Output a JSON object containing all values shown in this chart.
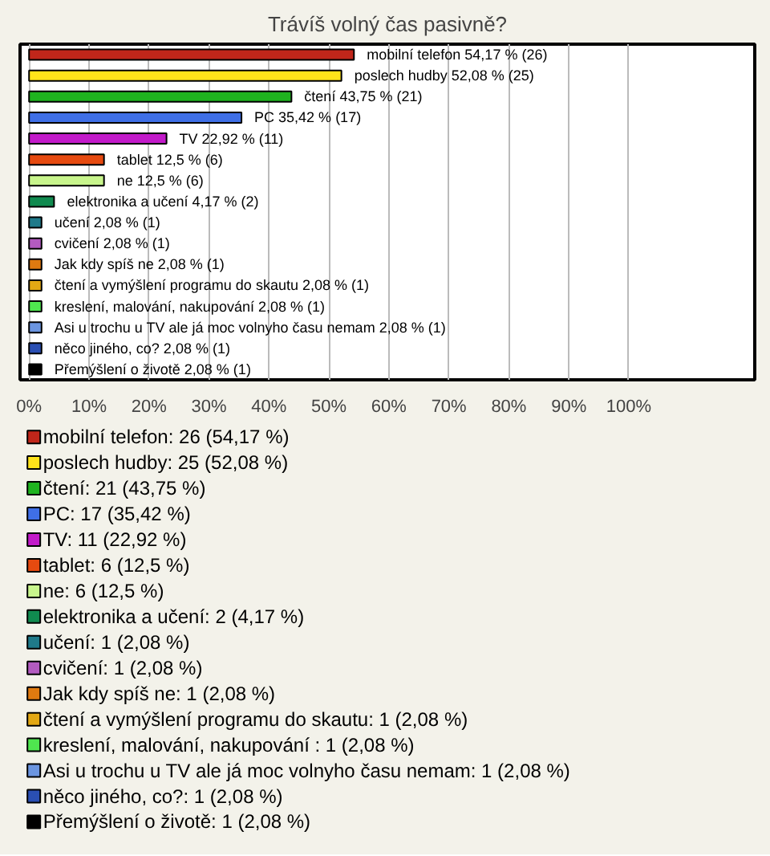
{
  "chart_data": {
    "type": "bar",
    "orientation": "horizontal",
    "title": "Trávíš volný čas pasivně?",
    "categories": [
      null,
      null,
      null,
      null,
      null,
      null,
      null,
      null,
      null,
      null,
      null,
      null,
      null,
      null,
      null,
      null
    ],
    "xlim": [
      -1.5,
      121
    ],
    "xticks": [
      {
        "value": 0,
        "label": "0%"
      },
      {
        "value": 10,
        "label": "10%"
      },
      {
        "value": 20,
        "label": "20%"
      },
      {
        "value": 30,
        "label": "30%"
      },
      {
        "value": 40,
        "label": "40%"
      },
      {
        "value": 50,
        "label": "50%"
      },
      {
        "value": 60,
        "label": "60%"
      },
      {
        "value": 70,
        "label": "70%"
      },
      {
        "value": 80,
        "label": "80%"
      },
      {
        "value": 90,
        "label": "90%"
      },
      {
        "value": 100,
        "label": "100%"
      }
    ],
    "grid": "x",
    "legend": "bottom",
    "tick_labels": "x",
    "series": [
      {
        "name": "mobilní telefon: 26 (54,17 %)",
        "color": "#c0261a",
        "values": [
          54.17,
          null,
          null,
          null,
          null,
          null,
          null,
          null,
          null,
          null,
          null,
          null,
          null,
          null,
          null,
          null
        ],
        "value_labels": [
          "mobilní telefon 54,17 % (26)",
          null,
          null,
          null,
          null,
          null,
          null,
          null,
          null,
          null,
          null,
          null,
          null,
          null,
          null,
          null
        ]
      },
      {
        "name": "poslech hudby: 25 (52,08 %)",
        "color": "#ffe31a",
        "values": [
          null,
          52.08,
          null,
          null,
          null,
          null,
          null,
          null,
          null,
          null,
          null,
          null,
          null,
          null,
          null,
          null
        ],
        "value_labels": [
          null,
          "poslech hudby 52,08 % (25)",
          null,
          null,
          null,
          null,
          null,
          null,
          null,
          null,
          null,
          null,
          null,
          null,
          null,
          null
        ]
      },
      {
        "name": "čtení: 21 (43,75 %)",
        "color": "#1fb31f",
        "values": [
          null,
          null,
          43.75,
          null,
          null,
          null,
          null,
          null,
          null,
          null,
          null,
          null,
          null,
          null,
          null,
          null
        ],
        "value_labels": [
          null,
          null,
          "čtení 43,75 % (21)",
          null,
          null,
          null,
          null,
          null,
          null,
          null,
          null,
          null,
          null,
          null,
          null,
          null
        ]
      },
      {
        "name": "PC: 17 (35,42 %)",
        "color": "#3f6fe6",
        "values": [
          null,
          null,
          null,
          35.42,
          null,
          null,
          null,
          null,
          null,
          null,
          null,
          null,
          null,
          null,
          null,
          null
        ],
        "value_labels": [
          null,
          null,
          null,
          "PC 35,42 % (17)",
          null,
          null,
          null,
          null,
          null,
          null,
          null,
          null,
          null,
          null,
          null,
          null
        ]
      },
      {
        "name": "TV: 11 (22,92 %)",
        "color": "#c21ac9",
        "values": [
          null,
          null,
          null,
          null,
          22.92,
          null,
          null,
          null,
          null,
          null,
          null,
          null,
          null,
          null,
          null,
          null
        ],
        "value_labels": [
          null,
          null,
          null,
          null,
          "TV 22,92 % (11)",
          null,
          null,
          null,
          null,
          null,
          null,
          null,
          null,
          null,
          null,
          null
        ]
      },
      {
        "name": "tablet: 6 (12,5 %)",
        "color": "#e64a10",
        "values": [
          null,
          null,
          null,
          null,
          null,
          12.5,
          null,
          null,
          null,
          null,
          null,
          null,
          null,
          null,
          null,
          null
        ],
        "value_labels": [
          null,
          null,
          null,
          null,
          null,
          "tablet 12,5 % (6)",
          null,
          null,
          null,
          null,
          null,
          null,
          null,
          null,
          null,
          null
        ]
      },
      {
        "name": "ne: 6 (12,5 %)",
        "color": "#c8f58c",
        "values": [
          null,
          null,
          null,
          null,
          null,
          null,
          12.5,
          null,
          null,
          null,
          null,
          null,
          null,
          null,
          null,
          null
        ],
        "value_labels": [
          null,
          null,
          null,
          null,
          null,
          null,
          "ne 12,5 % (6)",
          null,
          null,
          null,
          null,
          null,
          null,
          null,
          null,
          null
        ]
      },
      {
        "name": "elektronika a učení: 2 (4,17 %)",
        "color": "#108a4f",
        "values": [
          null,
          null,
          null,
          null,
          null,
          null,
          null,
          4.17,
          null,
          null,
          null,
          null,
          null,
          null,
          null,
          null
        ],
        "value_labels": [
          null,
          null,
          null,
          null,
          null,
          null,
          null,
          "elektronika a učení 4,17 % (2)",
          null,
          null,
          null,
          null,
          null,
          null,
          null,
          null
        ]
      },
      {
        "name": "učení: 1 (2,08 %)",
        "color": "#1f7a8a",
        "values": [
          null,
          null,
          null,
          null,
          null,
          null,
          null,
          null,
          2.08,
          null,
          null,
          null,
          null,
          null,
          null,
          null
        ],
        "value_labels": [
          null,
          null,
          null,
          null,
          null,
          null,
          null,
          null,
          "učení 2,08 % (1)",
          null,
          null,
          null,
          null,
          null,
          null,
          null
        ]
      },
      {
        "name": "cvičení: 1 (2,08 %)",
        "color": "#b35bc0",
        "values": [
          null,
          null,
          null,
          null,
          null,
          null,
          null,
          null,
          null,
          2.08,
          null,
          null,
          null,
          null,
          null,
          null
        ],
        "value_labels": [
          null,
          null,
          null,
          null,
          null,
          null,
          null,
          null,
          null,
          "cvičení 2,08 % (1)",
          null,
          null,
          null,
          null,
          null,
          null
        ]
      },
      {
        "name": "Jak kdy spíš ne: 1 (2,08 %)",
        "color": "#e07a10",
        "values": [
          null,
          null,
          null,
          null,
          null,
          null,
          null,
          null,
          null,
          null,
          2.08,
          null,
          null,
          null,
          null,
          null
        ],
        "value_labels": [
          null,
          null,
          null,
          null,
          null,
          null,
          null,
          null,
          null,
          null,
          "Jak kdy spíš ne 2,08 % (1)",
          null,
          null,
          null,
          null,
          null
        ]
      },
      {
        "name": "čtení a vymýšlení programu do skautu: 1 (2,08 %)",
        "color": "#e3a814",
        "values": [
          null,
          null,
          null,
          null,
          null,
          null,
          null,
          null,
          null,
          null,
          null,
          2.08,
          null,
          null,
          null,
          null
        ],
        "value_labels": [
          null,
          null,
          null,
          null,
          null,
          null,
          null,
          null,
          null,
          null,
          null,
          "čtení a vymýšlení programu do skautu 2,08 % (1)",
          null,
          null,
          null,
          null
        ]
      },
      {
        "name": "kreslení, malování, nakupování : 1 (2,08 %)",
        "color": "#4fe64f",
        "values": [
          null,
          null,
          null,
          null,
          null,
          null,
          null,
          null,
          null,
          null,
          null,
          null,
          2.08,
          null,
          null,
          null
        ],
        "value_labels": [
          null,
          null,
          null,
          null,
          null,
          null,
          null,
          null,
          null,
          null,
          null,
          null,
          "kreslení, malování, nakupování  2,08 % (1)",
          null,
          null,
          null
        ]
      },
      {
        "name": "Asi u trochu u TV ale já moc volnyho času nemam: 1 (2,08 %)",
        "color": "#6b95e0",
        "values": [
          null,
          null,
          null,
          null,
          null,
          null,
          null,
          null,
          null,
          null,
          null,
          null,
          null,
          2.08,
          null,
          null
        ],
        "value_labels": [
          null,
          null,
          null,
          null,
          null,
          null,
          null,
          null,
          null,
          null,
          null,
          null,
          null,
          "Asi u trochu u TV ale já moc volnyho času nemam 2,08 % (1)",
          null,
          null
        ]
      },
      {
        "name": "něco jiného, co?: 1 (2,08 %)",
        "color": "#2a4fb3",
        "values": [
          null,
          null,
          null,
          null,
          null,
          null,
          null,
          null,
          null,
          null,
          null,
          null,
          null,
          null,
          2.08,
          null
        ],
        "value_labels": [
          null,
          null,
          null,
          null,
          null,
          null,
          null,
          null,
          null,
          null,
          null,
          null,
          null,
          null,
          "něco jiného, co? 2,08 % (1)",
          null
        ]
      },
      {
        "name": "Přemýšlení o životě: 1 (2,08 %)",
        "color": "#000000",
        "values": [
          null,
          null,
          null,
          null,
          null,
          null,
          null,
          null,
          null,
          null,
          null,
          null,
          null,
          null,
          null,
          2.08
        ],
        "value_labels": [
          null,
          null,
          null,
          null,
          null,
          null,
          null,
          null,
          null,
          null,
          null,
          null,
          null,
          null,
          null,
          "Přemýšlení o životě 2,08 % (1)"
        ]
      }
    ]
  }
}
